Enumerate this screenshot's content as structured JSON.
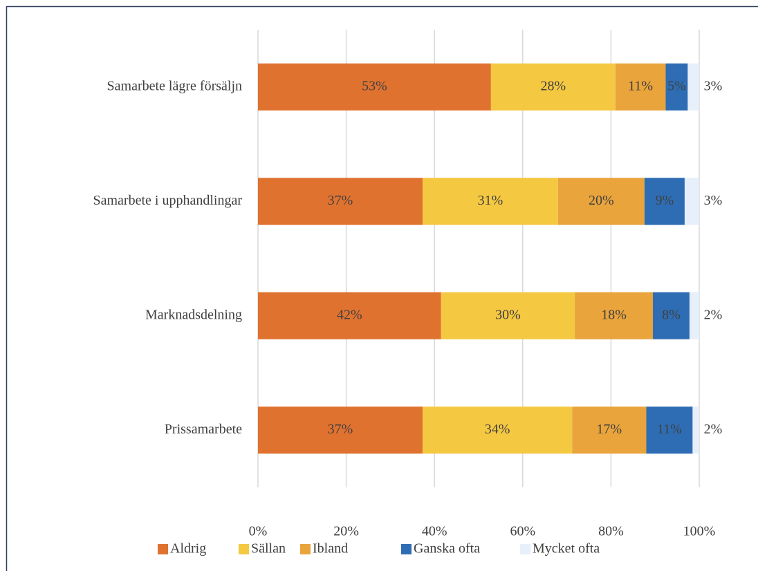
{
  "chart_data": {
    "type": "stacked-bar-horizontal",
    "categories": [
      "Samarbete lägre försäljn",
      "Samarbete i upphandlingar",
      "Marknadsdelning",
      "Prissamarbete"
    ],
    "series": [
      {
        "name": "Aldrig",
        "color": "#e07230",
        "values": [
          52.8,
          37.3,
          41.5,
          37.3
        ],
        "value_labels": [
          "53%",
          "37%",
          "42%",
          "37%"
        ]
      },
      {
        "name": "Sällan",
        "color": "#f5c842",
        "values": [
          28.2,
          30.7,
          30.3,
          33.9
        ],
        "value_labels": [
          "28%",
          "31%",
          "30%",
          "34%"
        ]
      },
      {
        "name": "Ibland",
        "color": "#e9a43c",
        "values": [
          11.4,
          19.6,
          17.7,
          16.8
        ],
        "value_labels": [
          "11%",
          "20%",
          "18%",
          "17%"
        ]
      },
      {
        "name": "Ganska ofta",
        "color": "#2e6db4",
        "values": [
          5.0,
          9.1,
          8.3,
          10.5
        ],
        "value_labels": [
          "5%",
          "9%",
          "8%",
          "11%"
        ]
      },
      {
        "name": "Mycket ofta",
        "color": "#e6effa",
        "values": [
          2.6,
          3.3,
          2.2,
          1.5
        ],
        "value_labels": [
          "3%",
          "3%",
          "2%",
          "2%"
        ]
      }
    ],
    "xlim": [
      0,
      100
    ],
    "xticks": [
      {
        "value": 0,
        "label": "0%"
      },
      {
        "value": 20,
        "label": "20%"
      },
      {
        "value": 40,
        "label": "40%"
      },
      {
        "value": 60,
        "label": "60%"
      },
      {
        "value": 80,
        "label": "80%"
      },
      {
        "value": 100,
        "label": "100%"
      }
    ],
    "grid": true,
    "legend": "bottom"
  }
}
